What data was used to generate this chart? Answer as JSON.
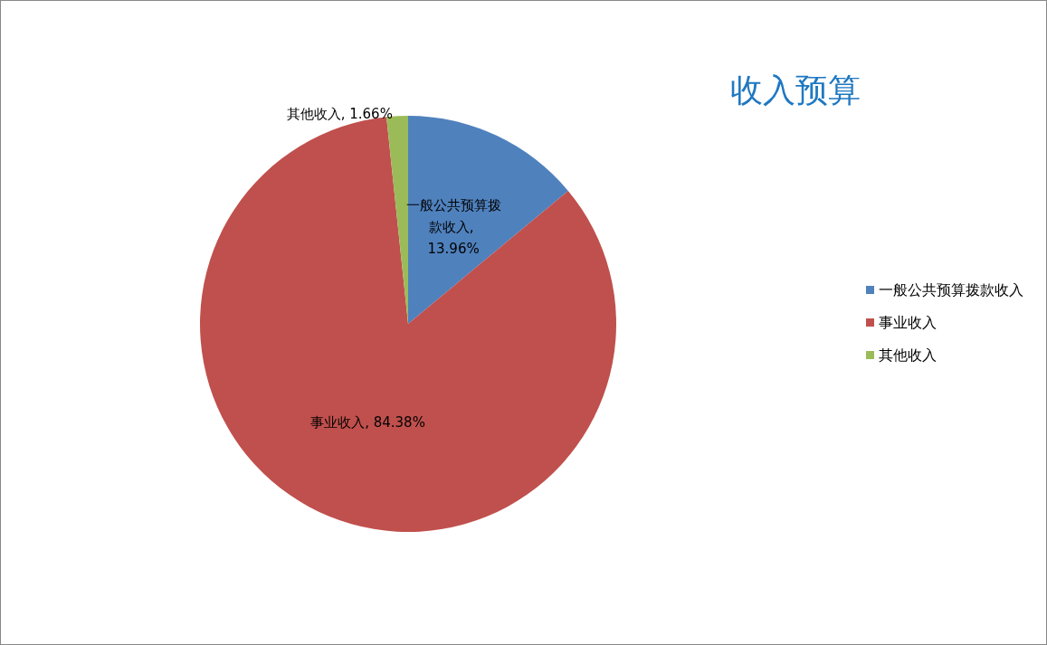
{
  "chart_data": {
    "type": "pie",
    "title": "收入预算",
    "categories": [
      "一般公共预算拨款收入",
      "事业收入",
      "其他收入"
    ],
    "values": [
      13.96,
      84.38,
      1.66
    ],
    "colors": [
      "#4f81bd",
      "#c0504d",
      "#9bbb59"
    ],
    "value_labels": [
      "一般公共预算拨款收入, 13.96%",
      "事业收入, 84.38%",
      "其他收入, 1.66%"
    ],
    "legend": "right"
  }
}
